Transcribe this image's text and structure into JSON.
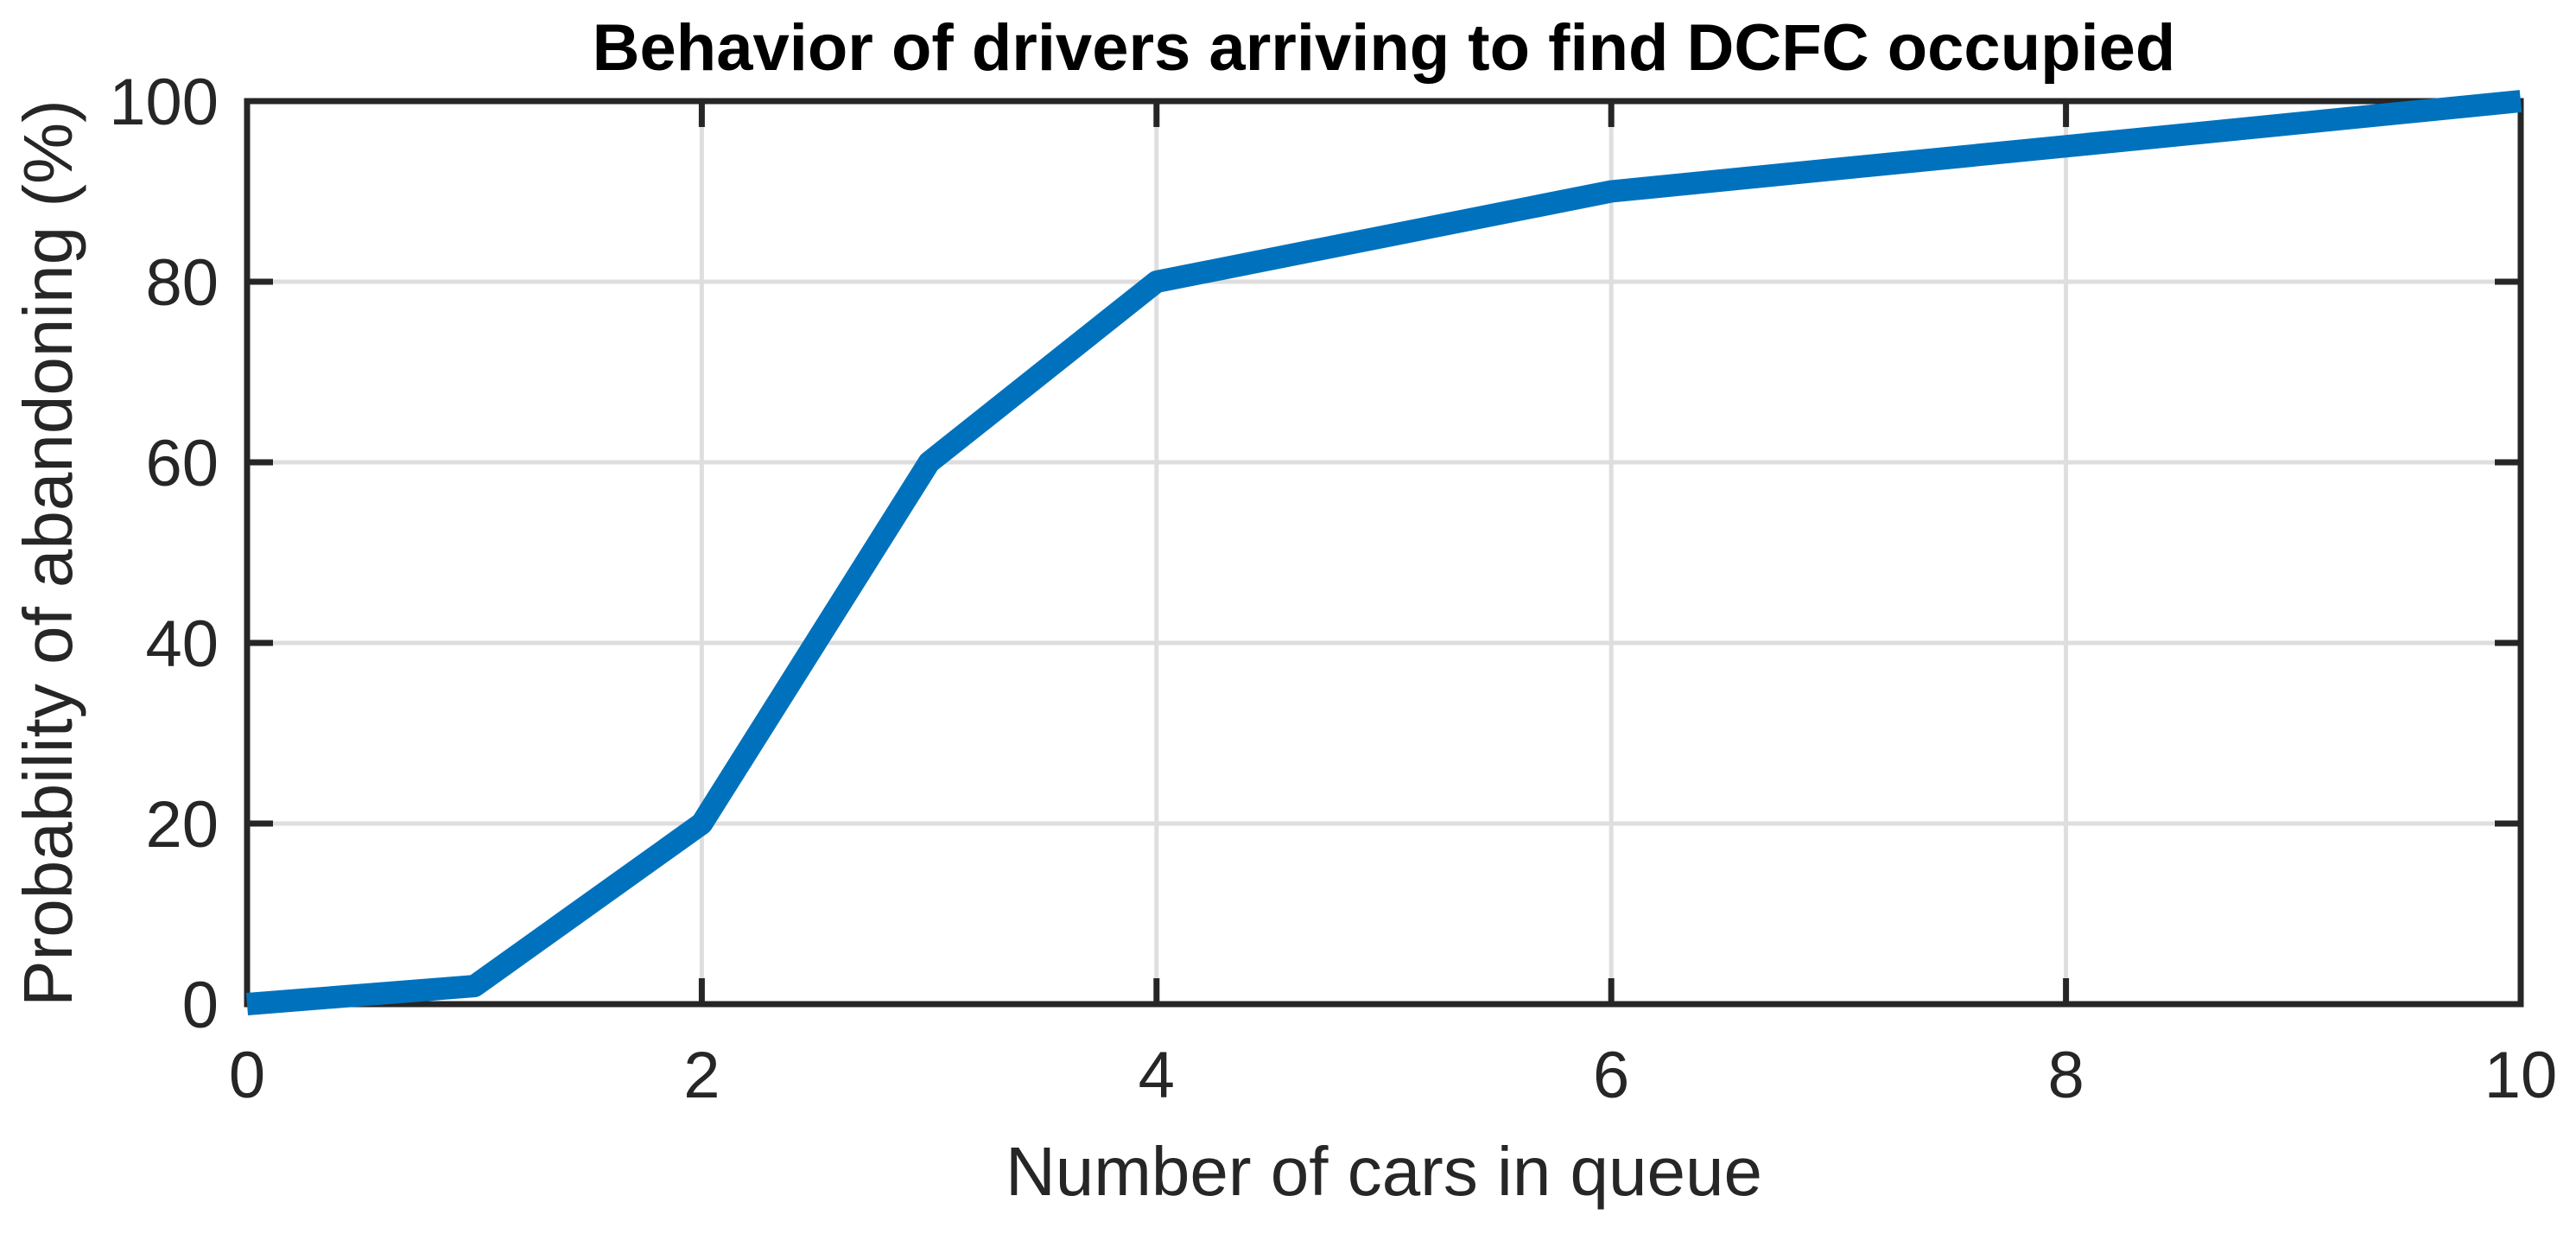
{
  "figure": {
    "background_color": "#ffffff"
  },
  "chart_data": {
    "type": "line",
    "title": "Behavior of drivers arriving to find DCFC occupied",
    "xlabel": "Number of cars in queue",
    "ylabel": "Probability of abandoning (%)",
    "x": [
      0,
      1,
      2,
      3,
      4,
      6,
      10
    ],
    "y": [
      0,
      2,
      20,
      60,
      80,
      90,
      100
    ],
    "series_name": "Probability of abandoning",
    "xlim": [
      0,
      10
    ],
    "ylim": [
      0,
      100
    ],
    "xticks": [
      0,
      2,
      4,
      6,
      8,
      10
    ],
    "ytick_labels": [
      "0",
      "20",
      "40",
      "60",
      "80",
      "100"
    ],
    "xtick_labels": [
      "0",
      "2",
      "4",
      "6",
      "8",
      "10"
    ],
    "yticks": [
      0,
      20,
      40,
      60,
      80,
      100
    ],
    "grid": true,
    "box": true,
    "legend": null,
    "line_color": "#0072BD",
    "axis_color": "#262626",
    "grid_color": "#DEDEDE",
    "title_color": "#000000"
  }
}
